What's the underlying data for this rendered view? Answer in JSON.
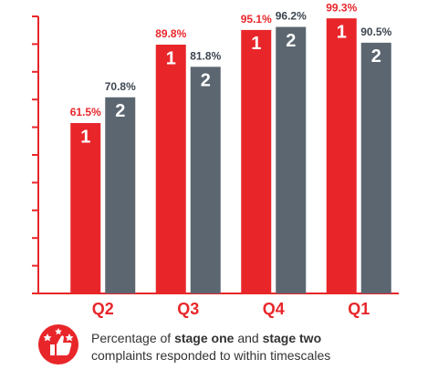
{
  "chart_data": {
    "type": "bar",
    "categories": [
      "Q2",
      "Q3",
      "Q4",
      "Q1"
    ],
    "series": [
      {
        "name": "1",
        "color": "#e8262a",
        "values": [
          61.5,
          89.8,
          95.1,
          99.3
        ],
        "value_labels": [
          "61.5%",
          "89.8%",
          "95.1%",
          "99.3%"
        ]
      },
      {
        "name": "2",
        "color": "#5b6670",
        "values": [
          70.8,
          81.8,
          96.2,
          90.5
        ],
        "value_labels": [
          "70.8%",
          "81.8%",
          "96.2%",
          "90.5%"
        ]
      }
    ],
    "ylim": [
      0,
      100
    ],
    "yticks": [
      0,
      10,
      20,
      30,
      40,
      50,
      60,
      70,
      80,
      90,
      100
    ],
    "axis_color": "#e8262a",
    "caption": {
      "line1": [
        "Percentage of",
        "stage one",
        "and",
        "stage two"
      ],
      "line2": "complaints responded to within timescales"
    }
  }
}
